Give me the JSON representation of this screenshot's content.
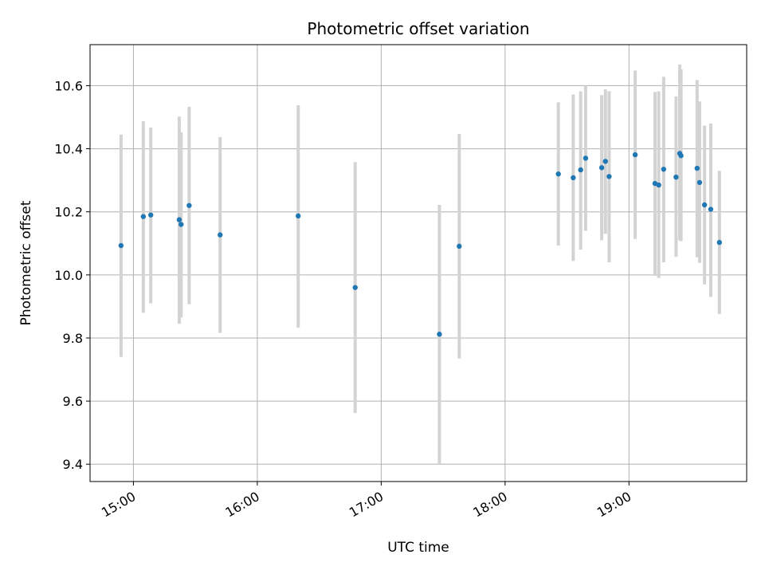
{
  "chart_data": {
    "type": "scatter",
    "title": "Photometric offset variation",
    "xlabel": "UTC time",
    "ylabel": "Photometric offset",
    "xlim": [
      14.65,
      19.95
    ],
    "ylim": [
      9.345,
      10.73
    ],
    "grid": true,
    "x_ticks": [
      {
        "value": 15,
        "label": "15:00"
      },
      {
        "value": 16,
        "label": "16:00"
      },
      {
        "value": 17,
        "label": "17:00"
      },
      {
        "value": 18,
        "label": "18:00"
      },
      {
        "value": 19,
        "label": "19:00"
      }
    ],
    "y_ticks": [
      {
        "value": 9.4,
        "label": "9.4"
      },
      {
        "value": 9.6,
        "label": "9.6"
      },
      {
        "value": 9.8,
        "label": "9.8"
      },
      {
        "value": 10.0,
        "label": "10.0"
      },
      {
        "value": 10.2,
        "label": "10.2"
      },
      {
        "value": 10.4,
        "label": "10.4"
      },
      {
        "value": 10.6,
        "label": "10.6"
      }
    ],
    "points": [
      {
        "x": 14.9,
        "y": 10.093,
        "lo": 9.74,
        "hi": 10.445
      },
      {
        "x": 15.08,
        "y": 10.185,
        "lo": 9.88,
        "hi": 10.487
      },
      {
        "x": 15.14,
        "y": 10.19,
        "lo": 9.91,
        "hi": 10.467
      },
      {
        "x": 15.37,
        "y": 10.175,
        "lo": 9.845,
        "hi": 10.502
      },
      {
        "x": 15.385,
        "y": 10.16,
        "lo": 9.865,
        "hi": 10.452
      },
      {
        "x": 15.45,
        "y": 10.22,
        "lo": 9.907,
        "hi": 10.533
      },
      {
        "x": 15.7,
        "y": 10.127,
        "lo": 9.816,
        "hi": 10.437
      },
      {
        "x": 16.33,
        "y": 10.187,
        "lo": 9.833,
        "hi": 10.538
      },
      {
        "x": 16.79,
        "y": 9.96,
        "lo": 9.562,
        "hi": 10.358
      },
      {
        "x": 17.47,
        "y": 9.812,
        "lo": 9.4,
        "hi": 10.222
      },
      {
        "x": 17.63,
        "y": 10.091,
        "lo": 9.735,
        "hi": 10.447
      },
      {
        "x": 18.43,
        "y": 10.32,
        "lo": 10.093,
        "hi": 10.547
      },
      {
        "x": 18.55,
        "y": 10.308,
        "lo": 10.044,
        "hi": 10.572
      },
      {
        "x": 18.61,
        "y": 10.333,
        "lo": 10.08,
        "hi": 10.582
      },
      {
        "x": 18.65,
        "y": 10.37,
        "lo": 10.14,
        "hi": 10.6
      },
      {
        "x": 18.78,
        "y": 10.34,
        "lo": 10.11,
        "hi": 10.57
      },
      {
        "x": 18.81,
        "y": 10.36,
        "lo": 10.13,
        "hi": 10.588
      },
      {
        "x": 18.84,
        "y": 10.312,
        "lo": 10.04,
        "hi": 10.582
      },
      {
        "x": 19.05,
        "y": 10.381,
        "lo": 10.114,
        "hi": 10.648
      },
      {
        "x": 19.21,
        "y": 10.29,
        "lo": 9.997,
        "hi": 10.58
      },
      {
        "x": 19.24,
        "y": 10.285,
        "lo": 9.99,
        "hi": 10.582
      },
      {
        "x": 19.28,
        "y": 10.335,
        "lo": 10.04,
        "hi": 10.628
      },
      {
        "x": 19.38,
        "y": 10.31,
        "lo": 10.057,
        "hi": 10.566
      },
      {
        "x": 19.41,
        "y": 10.385,
        "lo": 10.11,
        "hi": 10.667
      },
      {
        "x": 19.42,
        "y": 10.378,
        "lo": 10.107,
        "hi": 10.652
      },
      {
        "x": 19.55,
        "y": 10.338,
        "lo": 10.056,
        "hi": 10.618
      },
      {
        "x": 19.57,
        "y": 10.293,
        "lo": 10.038,
        "hi": 10.55
      },
      {
        "x": 19.61,
        "y": 10.222,
        "lo": 9.97,
        "hi": 10.473
      },
      {
        "x": 19.66,
        "y": 10.208,
        "lo": 9.93,
        "hi": 10.48
      },
      {
        "x": 19.73,
        "y": 10.103,
        "lo": 9.876,
        "hi": 10.33
      }
    ],
    "colors": {
      "point": "#1f77b4",
      "errorbar": "#d3d3d3",
      "grid": "#b0b0b0",
      "axis": "#000000"
    }
  }
}
